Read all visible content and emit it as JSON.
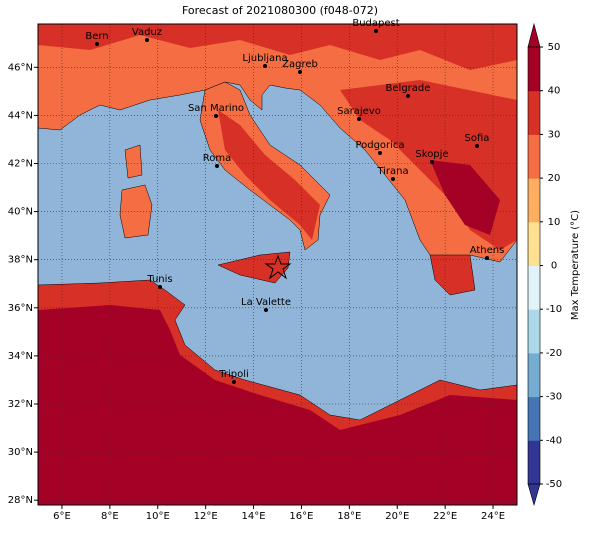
{
  "title": "Forecast of 2021080300 (f048-072)",
  "map": {
    "xlim": [
      5,
      25
    ],
    "ylim": [
      27.8,
      47.8
    ],
    "grid": true,
    "xticks": [
      {
        "value": 6,
        "label": "6°E"
      },
      {
        "value": 8,
        "label": "8°E"
      },
      {
        "value": 10,
        "label": "10°E"
      },
      {
        "value": 12,
        "label": "12°E"
      },
      {
        "value": 14,
        "label": "14°E"
      },
      {
        "value": 16,
        "label": "16°E"
      },
      {
        "value": 18,
        "label": "18°E"
      },
      {
        "value": 20,
        "label": "20°E"
      },
      {
        "value": 22,
        "label": "22°E"
      },
      {
        "value": 24,
        "label": "24°E"
      }
    ],
    "yticks": [
      {
        "value": 28,
        "label": "28°N"
      },
      {
        "value": 30,
        "label": "30°N"
      },
      {
        "value": 32,
        "label": "32°N"
      },
      {
        "value": 34,
        "label": "34°N"
      },
      {
        "value": 36,
        "label": "36°N"
      },
      {
        "value": 38,
        "label": "38°N"
      },
      {
        "value": 40,
        "label": "40°N"
      },
      {
        "value": 42,
        "label": "42°N"
      },
      {
        "value": 44,
        "label": "44°N"
      },
      {
        "value": 46,
        "label": "46°N"
      }
    ],
    "cities": [
      "Bern",
      "Vaduz",
      "Budapest",
      "Ljubljana",
      "Zagreb",
      "Belgrade",
      "San Marino",
      "Sarajevo",
      "Sofia",
      "Podgorica",
      "Roma",
      "Skopje",
      "Tirana",
      "Athens",
      "Tunis",
      "La Valette",
      "Tripoli"
    ]
  },
  "colorbar": {
    "label": "Max Temperature (°C)",
    "lim": [
      -50,
      50
    ],
    "ticks": [
      -50,
      -40,
      -30,
      -20,
      -10,
      0,
      10,
      20,
      30,
      40,
      50
    ],
    "colors": [
      "#313695",
      "#4575b4",
      "#74add1",
      "#abd9e9",
      "#e0f3f8",
      "#fee090",
      "#fdae61",
      "#f46d43",
      "#d73027",
      "#a50026"
    ]
  }
}
